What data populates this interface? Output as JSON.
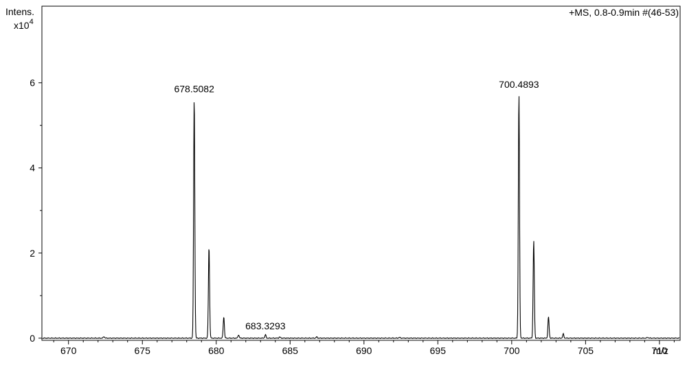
{
  "chart_data": {
    "type": "line",
    "title": "+MS, 0.8-0.9min #(46-53)",
    "ylabel": "Intens.",
    "yscale_label": "x10",
    "yscale_exp": "4",
    "xlabel": "m/z",
    "xlim": [
      668.2,
      711.4
    ],
    "ylim": [
      -0.05,
      7.8
    ],
    "x_ticks": [
      670,
      675,
      680,
      685,
      690,
      695,
      700,
      705,
      710
    ],
    "y_ticks": [
      0,
      2,
      4,
      6
    ],
    "x_tick_labels": [
      "670",
      "675",
      "680",
      "685",
      "690",
      "695",
      "700",
      "705",
      "710"
    ],
    "y_tick_labels": [
      "0",
      "2",
      "4",
      "6"
    ],
    "series": [
      {
        "color": "#000000",
        "peaks": [
          {
            "x": 672.4,
            "y": 0.04
          },
          {
            "x": 678.5082,
            "y": 5.65
          },
          {
            "x": 679.51,
            "y": 2.15
          },
          {
            "x": 680.51,
            "y": 0.5
          },
          {
            "x": 681.51,
            "y": 0.08
          },
          {
            "x": 683.3293,
            "y": 0.08
          },
          {
            "x": 684.3,
            "y": 0.03
          },
          {
            "x": 686.8,
            "y": 0.03
          },
          {
            "x": 692.4,
            "y": 0.02
          },
          {
            "x": 700.4893,
            "y": 5.75
          },
          {
            "x": 701.49,
            "y": 2.3
          },
          {
            "x": 702.49,
            "y": 0.5
          },
          {
            "x": 703.49,
            "y": 0.1
          },
          {
            "x": 709.2,
            "y": 0.02
          }
        ]
      }
    ],
    "annotations": [
      {
        "text": "678.5082",
        "x": 678.5082,
        "y": 5.65
      },
      {
        "text": "683.3293",
        "x": 683.3293,
        "y": 0.08
      },
      {
        "text": "700.4893",
        "x": 700.4893,
        "y": 5.75
      }
    ]
  }
}
